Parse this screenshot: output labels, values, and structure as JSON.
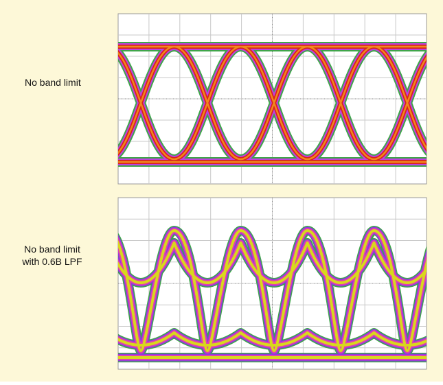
{
  "panels": [
    {
      "label": [
        "No band limit"
      ]
    },
    {
      "label": [
        "No band limit",
        "with 0.6B LPF"
      ]
    }
  ]
}
